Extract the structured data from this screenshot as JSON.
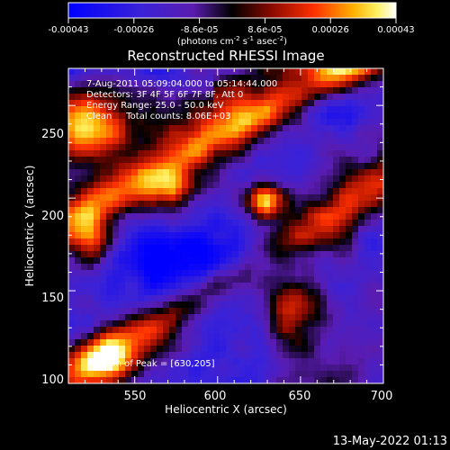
{
  "colorbar": {
    "tick_labels": [
      "-0.00043",
      "-0.00026",
      "-8.6e-05",
      "8.6e-05",
      "0.00026",
      "0.00043"
    ],
    "unit_prefix": "(photons cm",
    "unit_exp1": "-2",
    "unit_mid1": " s",
    "unit_exp2": "-1",
    "unit_mid2": " asec",
    "unit_exp3": "-2",
    "unit_suffix": ")",
    "range": [
      -0.00043,
      0.00043
    ]
  },
  "chart_data": {
    "type": "heatmap",
    "title": "Reconstructed RHESSI Image",
    "xlabel": "Heliocentric X (arcsec)",
    "ylabel": "Heliocentric Y (arcsec)",
    "xlim": [
      510,
      700
    ],
    "ylim": [
      100,
      270
    ],
    "xticks": [
      550,
      600,
      650,
      700
    ],
    "yticks": [
      100,
      150,
      200,
      250
    ],
    "xtick_labels": [
      "550",
      "600",
      "650",
      "700"
    ],
    "ytick_labels": [
      "100",
      "150",
      "200",
      "250"
    ],
    "colormap": "blue-purple-black-red-yellow-white",
    "info_lines": [
      "7-Aug-2011 05:09:04.000 to 05:14:44.000",
      "Detectors: 3F 4F 5F 6F 7F 8F, Att 0",
      "Energy Range: 25.0 - 50.0 keV",
      "Clean     Total counts: 8.06E+03"
    ],
    "peak_label": "Position of Peak = [630,205]",
    "peak_position": [
      630,
      205
    ]
  },
  "footer": {
    "timestamp": "13-May-2022 01:13"
  }
}
